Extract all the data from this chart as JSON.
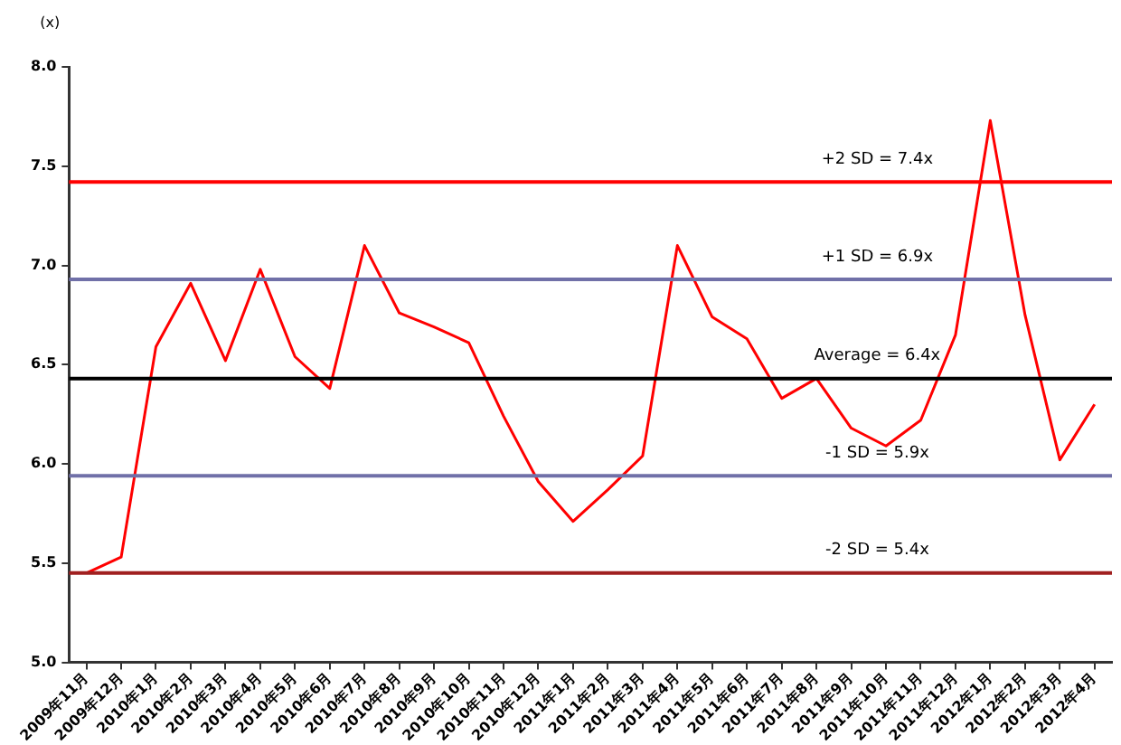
{
  "chart_data": {
    "type": "line",
    "ylabel": "(x)",
    "categories": [
      "2009年11月",
      "2009年12月",
      "2010年1月",
      "2010年2月",
      "2010年3月",
      "2010年4月",
      "2010年5月",
      "2010年6月",
      "2010年7月",
      "2010年8月",
      "2010年9月",
      "2010年10月",
      "2010年11月",
      "2010年12月",
      "2011年1月",
      "2011年2月",
      "2011年3月",
      "2011年4月",
      "2011年5月",
      "2011年6月",
      "2011年7月",
      "2011年8月",
      "2011年9月",
      "2011年10月",
      "2011年11月",
      "2011年12月",
      "2012年1月",
      "2012年2月",
      "2012年3月",
      "2012年4月"
    ],
    "series": [
      {
        "color": "#ff0000",
        "values": [
          5.45,
          5.53,
          6.59,
          6.91,
          6.52,
          6.98,
          6.54,
          6.38,
          7.1,
          6.76,
          6.69,
          6.61,
          6.24,
          5.91,
          5.71,
          5.87,
          6.04,
          7.1,
          6.74,
          6.63,
          6.33,
          6.43,
          6.18,
          6.09,
          6.22,
          6.65,
          7.73,
          6.75,
          6.02,
          6.3
        ]
      }
    ],
    "ylim": [
      5,
      8
    ],
    "yticks": [
      {
        "value": 5,
        "label": "5.0"
      },
      {
        "value": 5.5,
        "label": "5.5"
      },
      {
        "value": 6,
        "label": "6.0"
      },
      {
        "value": 6.5,
        "label": "6.5"
      },
      {
        "value": 7,
        "label": "7.0"
      },
      {
        "value": 7.5,
        "label": "7.5"
      },
      {
        "value": 8,
        "label": "8.0"
      }
    ],
    "ref_lines": [
      {
        "axis": "y",
        "value": 7.42,
        "label": "+2 SD = 7.4x",
        "color": "#ff0000"
      },
      {
        "axis": "y",
        "value": 6.93,
        "label": "+1 SD = 6.9x",
        "color": "#7070a8"
      },
      {
        "axis": "y",
        "value": 6.43,
        "label": "Average = 6.4x",
        "color": "#000000"
      },
      {
        "axis": "y",
        "value": 5.94,
        "label": "-1 SD = 5.9x",
        "color": "#7070a8"
      },
      {
        "axis": "y",
        "value": 5.45,
        "label": "-2 SD = 5.4x",
        "color": "#a02020"
      }
    ],
    "grid": false,
    "legend": false,
    "marker": "none",
    "line_style": "solid"
  }
}
